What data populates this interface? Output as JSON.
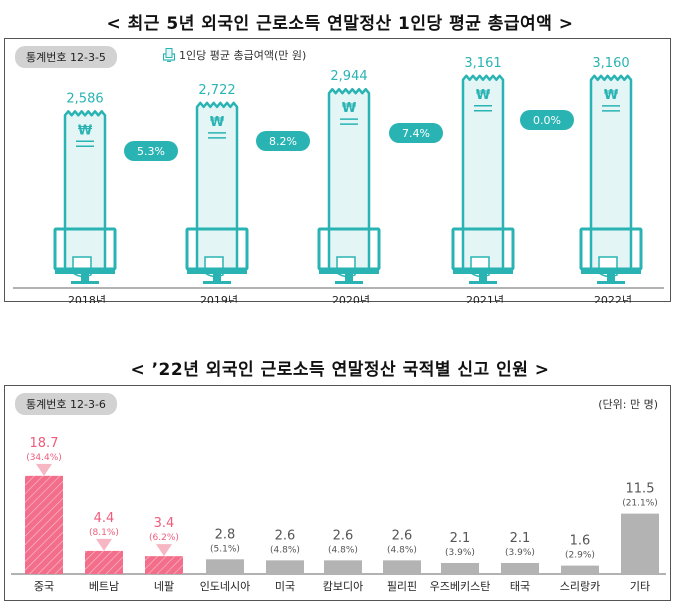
{
  "chart1": {
    "title": "< 최근 5년 외국인 근로소득 연말정산 1인당 평균 총급여액 >",
    "badge": "통계번호 12-3-5",
    "legend": "1인당 평균 총급여액(만 원)",
    "colors": {
      "accent": "#2ab3b3",
      "receipt": "#e4f5f6",
      "badge_bg": "#d2d2d2"
    },
    "icon": "monitor-receipt-icon",
    "chart_data": {
      "type": "bar",
      "categories": [
        "2018년",
        "2019년",
        "2020년",
        "2021년",
        "2022년"
      ],
      "values": [
        2586,
        2722,
        2944,
        3161,
        3160
      ],
      "value_labels": [
        "2,586",
        "2,722",
        "2,944",
        "3,161",
        "3,160"
      ],
      "growth_labels": [
        "5.3%",
        "8.2%",
        "7.4%",
        "0.0%"
      ],
      "currency_symbol": "₩",
      "unit": "만 원"
    }
  },
  "chart2": {
    "title": "< ’22년 외국인 근로소득 연말정산 국적별 신고 인원 >",
    "badge": "통계번호 12-3-6",
    "unit": "(단위: 만 명)",
    "colors": {
      "highlight": "#f26e8a",
      "highlight_text": "#ee5c7b",
      "gray": "#b3b3b3",
      "gray_text": "#555555"
    },
    "chart_data": {
      "type": "bar",
      "categories": [
        "중국",
        "베트남",
        "네팔",
        "인도네시아",
        "미국",
        "캄보디아",
        "필리핀",
        "우즈베키스탄",
        "태국",
        "스리랑카",
        "기타"
      ],
      "values": [
        18.7,
        4.4,
        3.4,
        2.8,
        2.6,
        2.6,
        2.6,
        2.1,
        2.1,
        1.6,
        11.5
      ],
      "value_labels": [
        "18.7",
        "4.4",
        "3.4",
        "2.8",
        "2.6",
        "2.6",
        "2.6",
        "2.1",
        "2.1",
        "1.6",
        "11.5"
      ],
      "shares": [
        "(34.4%)",
        "(8.1%)",
        "(6.2%)",
        "(5.1%)",
        "(4.8%)",
        "(4.8%)",
        "(4.8%)",
        "(3.9%)",
        "(3.9%)",
        "(2.9%)",
        "(21.1%)"
      ],
      "highlighted": [
        true,
        true,
        true,
        false,
        false,
        false,
        false,
        false,
        false,
        false,
        false
      ],
      "unit": "만 명"
    }
  }
}
